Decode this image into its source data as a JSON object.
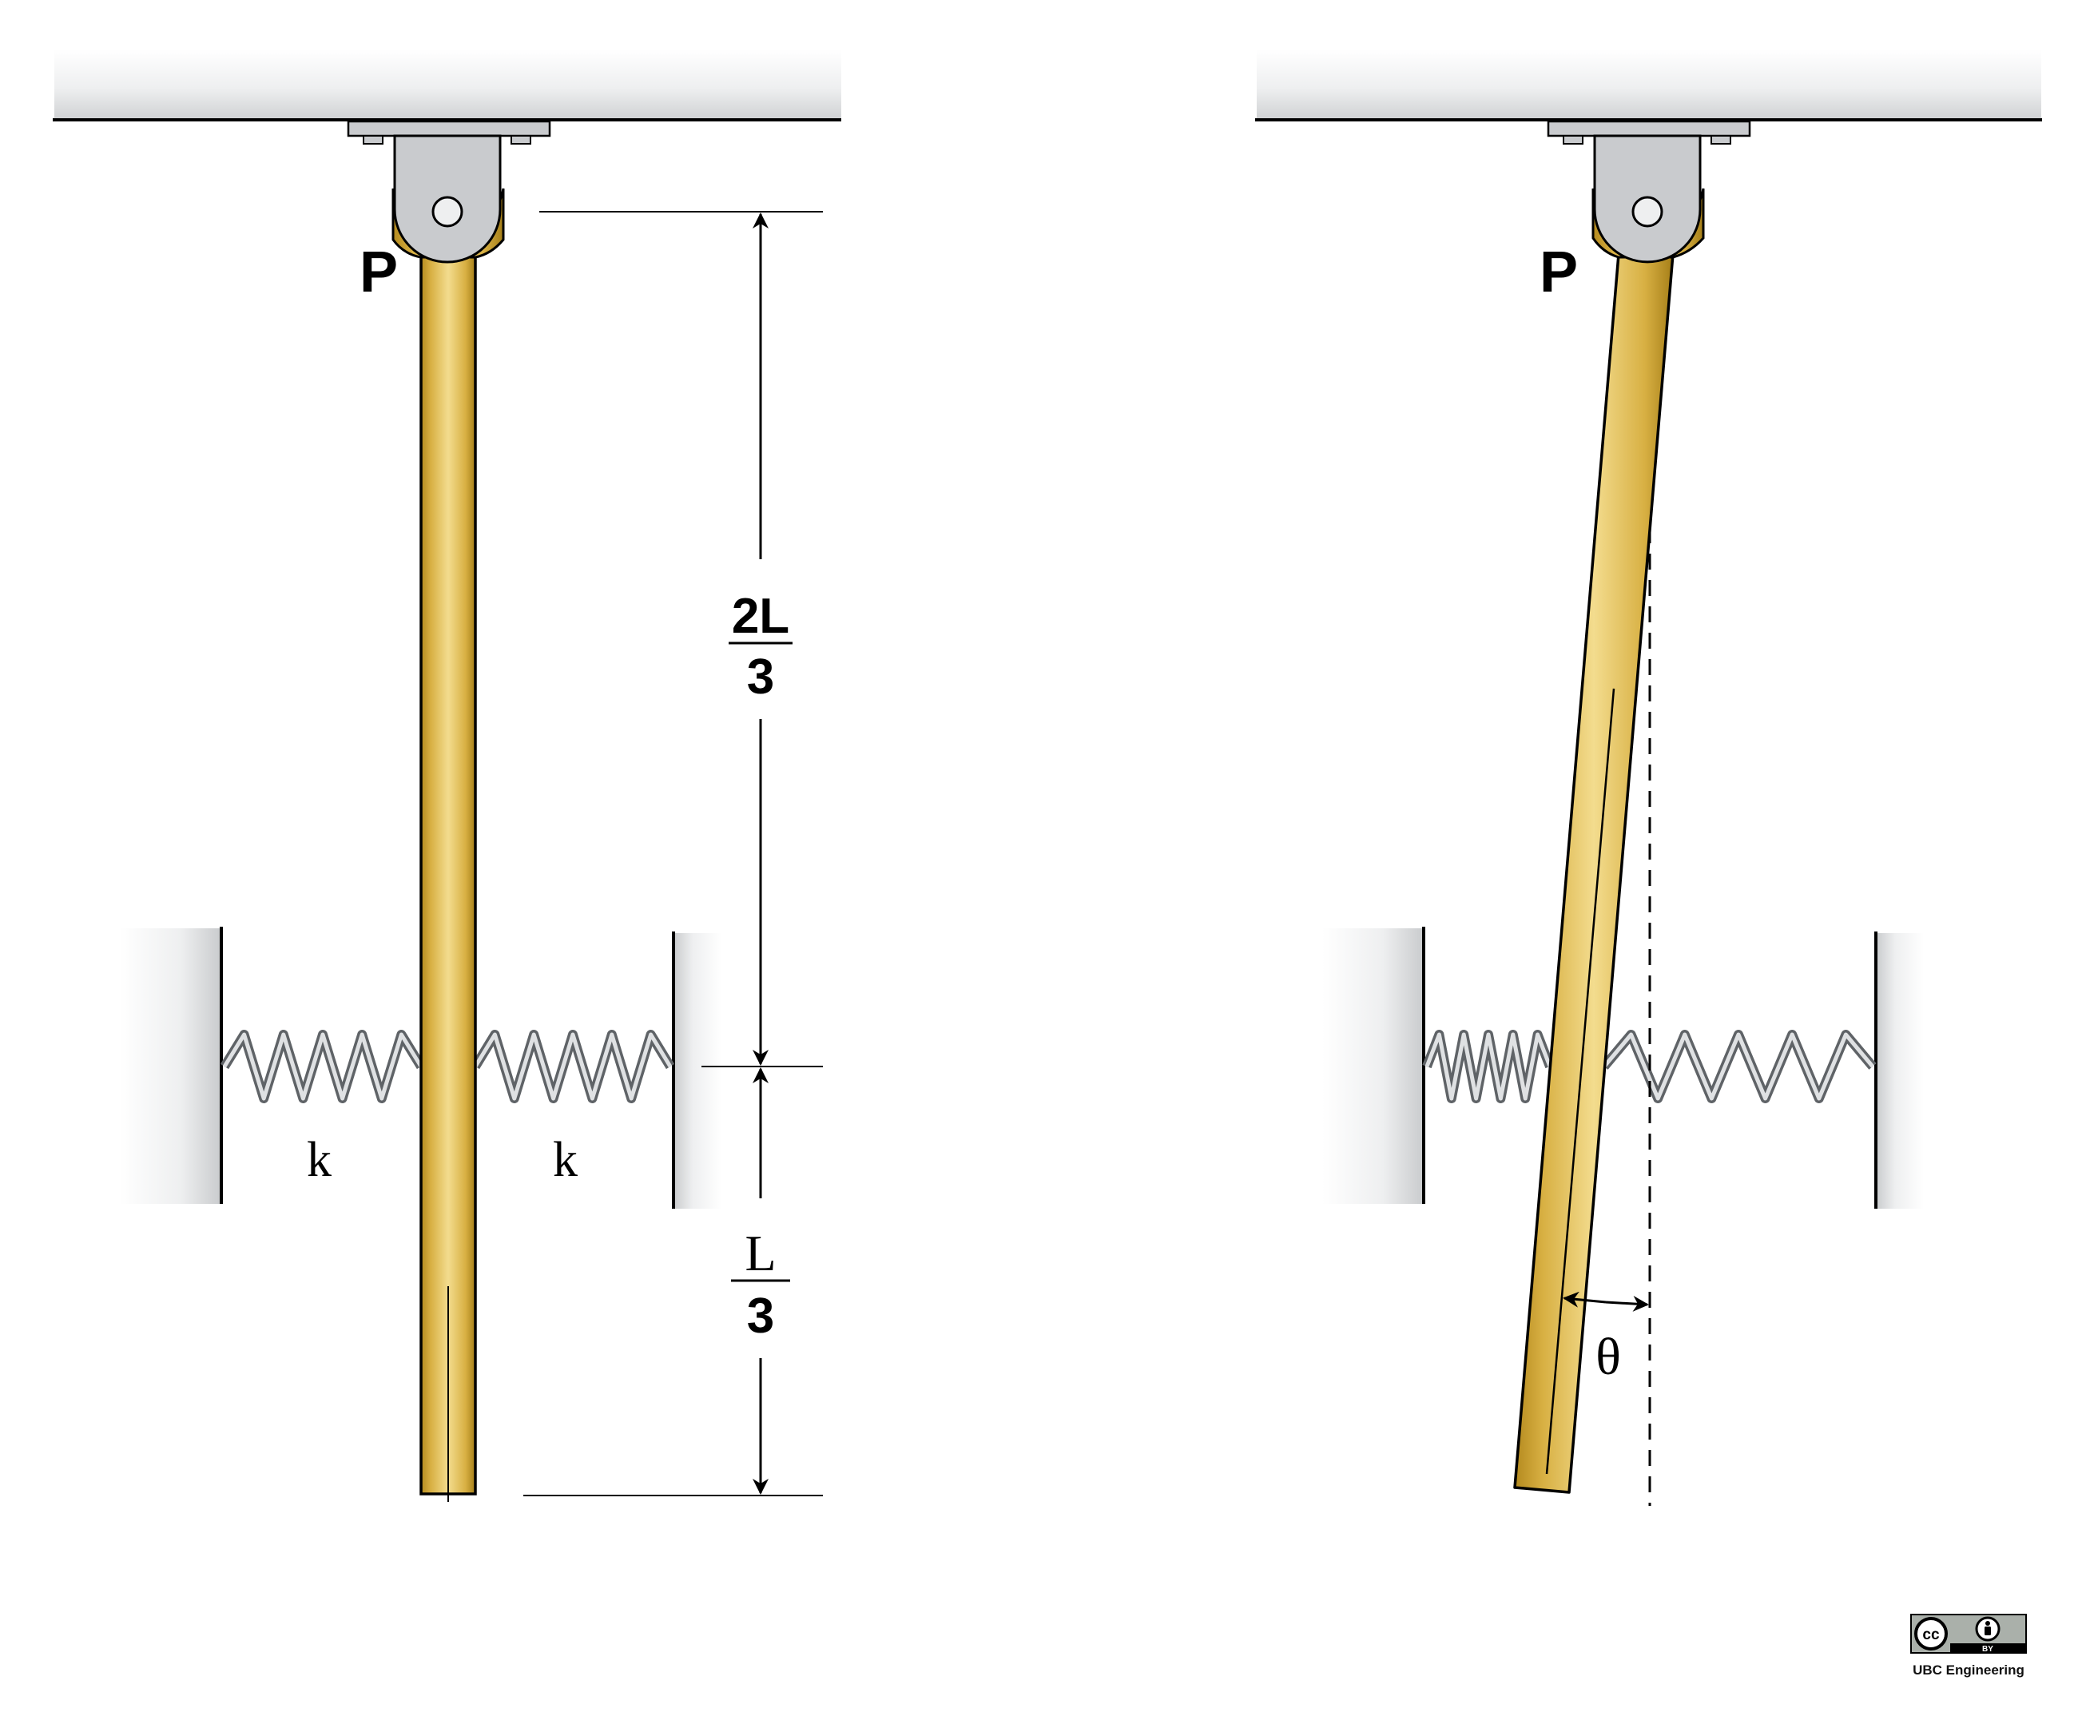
{
  "figure": {
    "left": {
      "pivot_label": "P",
      "spring_left_label": "k",
      "spring_right_label": "k",
      "dim_upper": {
        "numerator": "2L",
        "denominator": "3"
      },
      "dim_lower": {
        "numerator": "L",
        "denominator": "3"
      }
    },
    "right": {
      "pivot_label": "P",
      "angle_label": "θ"
    }
  },
  "credit": {
    "badge_left": "cc",
    "badge_right": "BY",
    "text": "UBC Engineering"
  },
  "colors": {
    "rod": "#d9b347",
    "rod_highlight": "#f2db8c",
    "rod_shadow": "#a67f18",
    "bracket": "#c9cbce",
    "spring": "#8e9296",
    "wall": "#e2e3e5"
  }
}
